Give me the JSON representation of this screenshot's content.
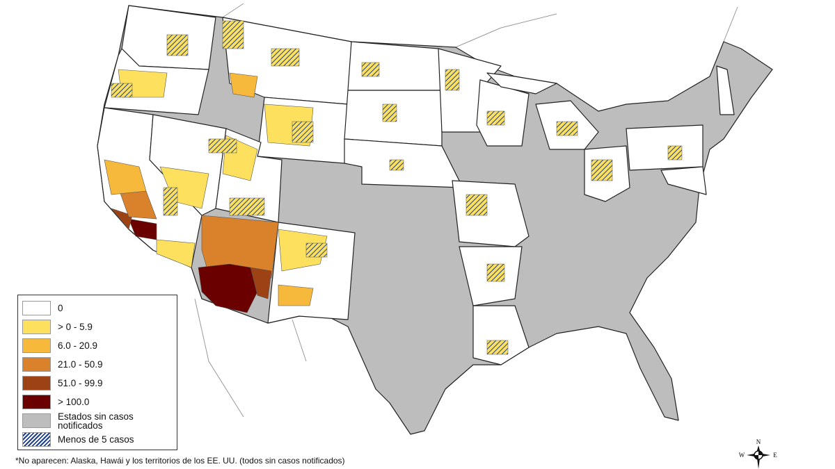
{
  "legend": {
    "items": [
      {
        "label": "0",
        "color": "#ffffff"
      },
      {
        "label": "> 0 - 5.9",
        "color": "#fde05e"
      },
      {
        "label": "6.0 - 20.9",
        "color": "#f6b93b"
      },
      {
        "label": "21.0 - 50.9",
        "color": "#d9822b"
      },
      {
        "label": "51.0 - 99.9",
        "color": "#9c4215"
      },
      {
        "label": "> 100.0",
        "color": "#6b0000"
      },
      {
        "label": "Estados sin casos notificados",
        "color": "#bdbdbd"
      },
      {
        "label": "Menos de 5 casos",
        "pattern": "blue-diagonal-hatch",
        "color": "#1f3f8f"
      }
    ]
  },
  "footnote": "*No aparecen: Alaska, Hawái y los territorios de los EE. UU. (todos sin casos notificados)",
  "compass": {
    "n": "N",
    "w": "W",
    "e": "E"
  }
}
